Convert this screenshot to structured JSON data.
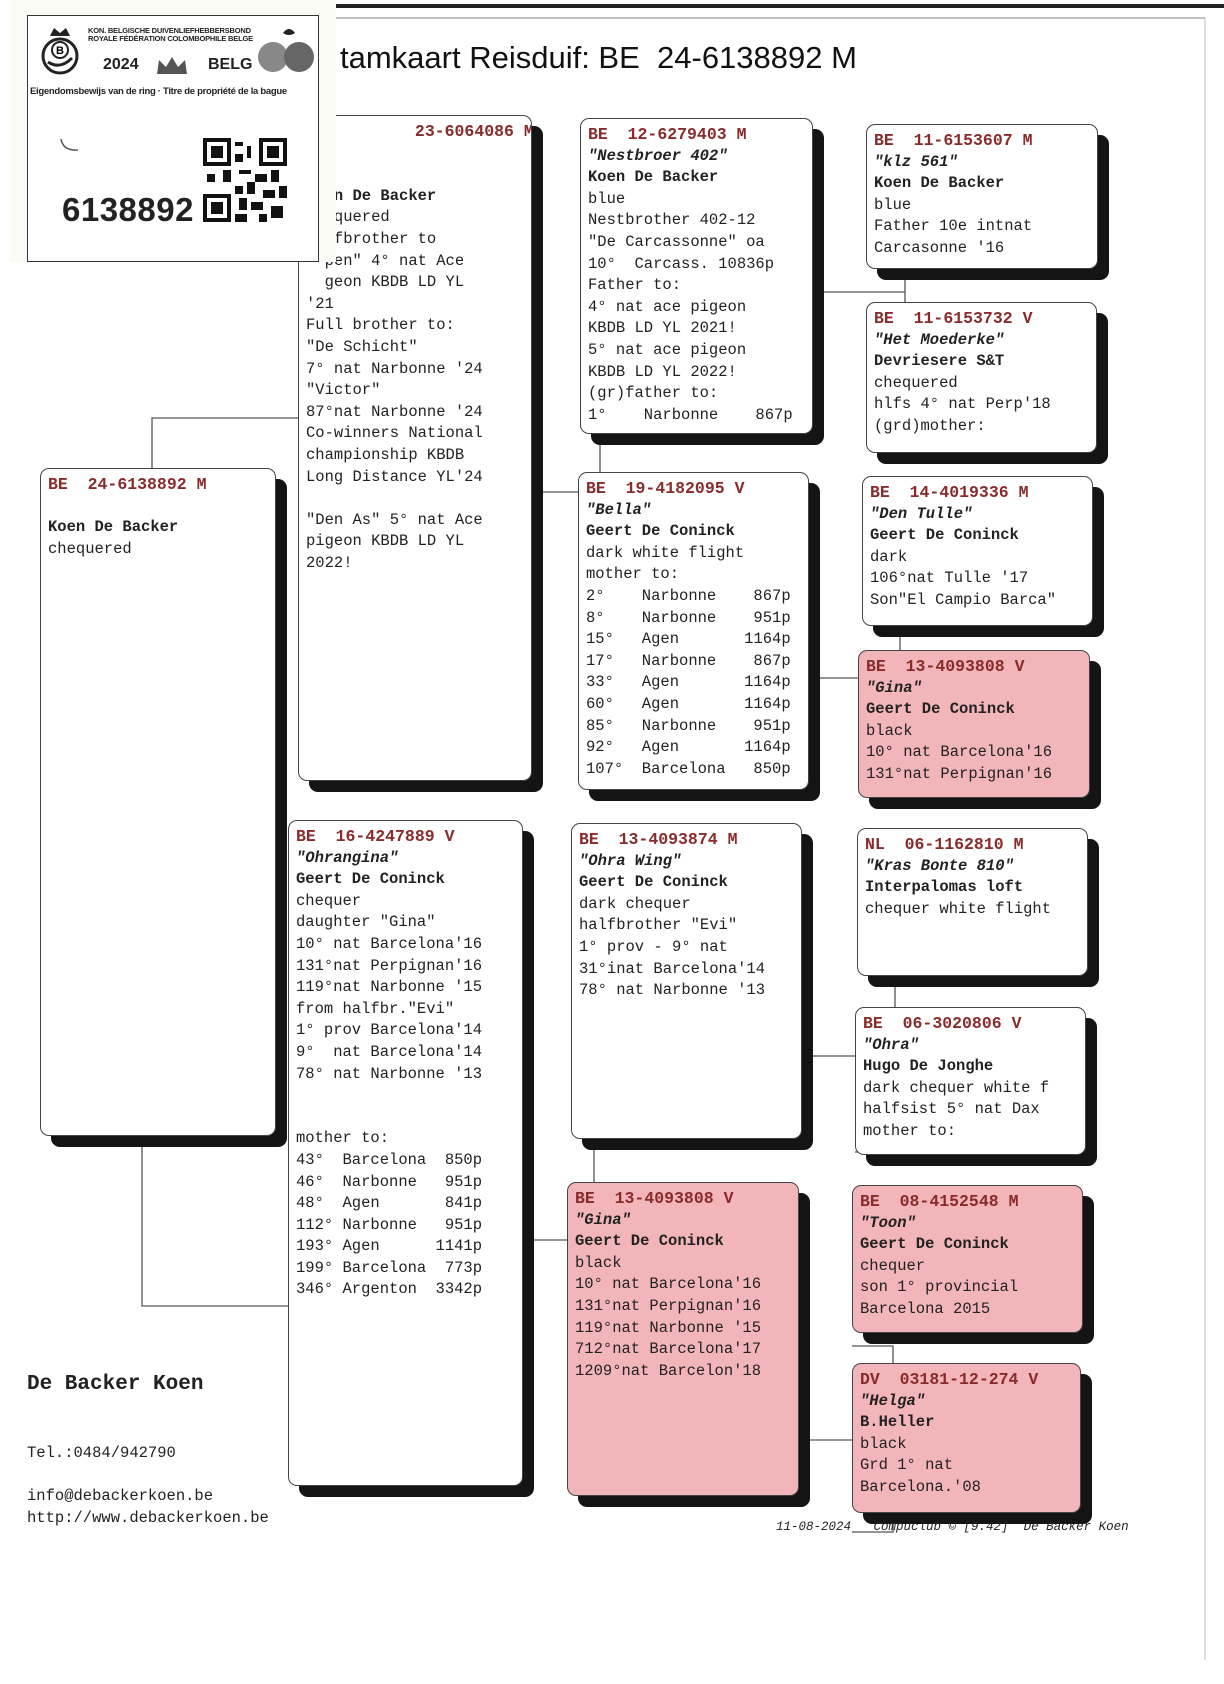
{
  "title": "tamkaart Reisduif: BE  24-6138892 M",
  "ring_card": {
    "federation_nl": "KON. BELGISCHE DUIVENLIEFHEBBERSBOND",
    "federation_fr": "ROYALE FÉDÉRATION COLOMBOPHILE BELGE",
    "year": "2024",
    "country": "BELG",
    "proof_text": "Eigendomsbewijs van de ring · Titre de propriété de la bague",
    "ring_number": "6138892",
    "icons": [
      "kbdb-logo",
      "crown-icon",
      "pigeon-globe-logo",
      "qr-code"
    ]
  },
  "boxes": {
    "subject": {
      "country": "BE",
      "ring": "24-6138892",
      "sex": "M",
      "name": "",
      "breeder": "Koen De Backer",
      "lines": [
        "chequered"
      ],
      "pink": false,
      "blank_before_breeder": true
    },
    "father": {
      "country": "",
      "ring": "23-6064086",
      "sex": "M",
      "name": "",
      "breeder": "",
      "lines": [
        "",
        "",
        "  en De Backer",
        "  equered",
        "  lfbrother to",
        "  pen\" 4° nat Ace",
        "  geon KBDB LD YL",
        "'21",
        "Full brother to:",
        "\"De Schicht\"",
        "7° nat Narbonne '24",
        "\"Victor\"",
        "87°nat Narbonne '24",
        "Co-winners National",
        "championship KBDB",
        "Long Distance YL'24",
        "",
        "\"Den As\" 5° nat Ace",
        "pigeon KBDB LD YL",
        "2022!"
      ],
      "pink": false
    },
    "ff": {
      "country": "BE",
      "ring": "12-6279403",
      "sex": "M",
      "name": "\"Nestbroer 402\"",
      "breeder": "Koen De Backer",
      "lines": [
        "blue",
        "Nestbrother 402-12",
        "\"De Carcassonne\" oa",
        "10°  Carcass. 10836p",
        "Father to:",
        "4° nat ace pigeon",
        "KBDB LD YL 2021!",
        "5° nat ace pigeon",
        "KBDB LD YL 2022!",
        "(gr)father to:",
        "1°    Narbonne    867p"
      ],
      "pink": false
    },
    "fm": {
      "country": "BE",
      "ring": "19-4182095",
      "sex": "V",
      "name": "\"Bella\"",
      "breeder": "Geert De Coninck",
      "lines": [
        "dark white flight",
        "mother to:",
        "2°    Narbonne    867p",
        "8°    Narbonne    951p",
        "15°   Agen       1164p",
        "17°   Narbonne    867p",
        "33°   Agen       1164p",
        "60°   Agen       1164p",
        "85°   Narbonne    951p",
        "92°   Agen       1164p",
        "107°  Barcelona   850p"
      ],
      "pink": false
    },
    "fff": {
      "country": "BE",
      "ring": "11-6153607",
      "sex": "M",
      "name": "\"klz 561\"",
      "breeder": "Koen De Backer",
      "lines": [
        "blue",
        "Father 10e intnat",
        "Carcasonne '16"
      ],
      "pink": false
    },
    "ffm": {
      "country": "BE",
      "ring": "11-6153732",
      "sex": "V",
      "name": "\"Het Moederke\"",
      "breeder": "Devriesere S&T",
      "lines": [
        "chequered",
        "hlfs 4° nat Perp'18",
        "(grd)mother:"
      ],
      "pink": false
    },
    "fmf": {
      "country": "BE",
      "ring": "14-4019336",
      "sex": "M",
      "name": "\"Den Tulle\"",
      "breeder": "Geert De Coninck",
      "lines": [
        "dark",
        "106°nat Tulle '17",
        "Son\"El Campio Barca\""
      ],
      "pink": false
    },
    "fmm": {
      "country": "BE",
      "ring": "13-4093808",
      "sex": "V",
      "name": "\"Gina\"",
      "breeder": "Geert De Coninck",
      "lines": [
        "black",
        "10° nat Barcelona'16",
        "131°nat Perpignan'16"
      ],
      "pink": true
    },
    "mother": {
      "country": "BE",
      "ring": "16-4247889",
      "sex": "V",
      "name": "\"Ohrangina\"",
      "breeder": "Geert De Coninck",
      "lines": [
        "chequer",
        "daughter \"Gina\"",
        "10° nat Barcelona'16",
        "131°nat Perpignan'16",
        "119°nat Narbonne '15",
        "from halfbr.\"Evi\"",
        "1° prov Barcelona'14",
        "9°  nat Barcelona'14",
        "78° nat Narbonne '13",
        "",
        "",
        "mother to:",
        "43°  Barcelona  850p",
        "46°  Narbonne   951p",
        "48°  Agen       841p",
        "112° Narbonne   951p",
        "193° Agen      1141p",
        "199° Barcelona  773p",
        "346° Argenton  3342p"
      ],
      "pink": false
    },
    "mf": {
      "country": "BE",
      "ring": "13-4093874",
      "sex": "M",
      "name": "\"Ohra Wing\"",
      "breeder": "Geert De Coninck",
      "lines": [
        "dark chequer",
        "halfbrother \"Evi\"",
        "1° prov - 9° nat",
        "31°inat Barcelona'14",
        "78° nat Narbonne '13"
      ],
      "pink": false
    },
    "mm": {
      "country": "BE",
      "ring": "13-4093808",
      "sex": "V",
      "name": "\"Gina\"",
      "breeder": "Geert De Coninck",
      "lines": [
        "black",
        "10° nat Barcelona'16",
        "131°nat Perpignan'16",
        "119°nat Narbonne '15",
        "712°nat Barcelona'17",
        "1209°nat Barcelon'18"
      ],
      "pink": true
    },
    "mff": {
      "country": "NL",
      "ring": "06-1162810",
      "sex": "M",
      "name": "\"Kras Bonte 810\"",
      "breeder": "Interpalomas loft",
      "lines": [
        "chequer white flight"
      ],
      "pink": false
    },
    "mfm": {
      "country": "BE",
      "ring": "06-3020806",
      "sex": "V",
      "name": "\"Ohra\"",
      "breeder": "Hugo De Jonghe",
      "lines": [
        "dark chequer white f",
        "halfsist 5° nat Dax",
        "mother to:"
      ],
      "pink": false
    },
    "mmf": {
      "country": "BE",
      "ring": "08-4152548",
      "sex": "M",
      "name": "\"Toon\"",
      "breeder": "Geert De Coninck",
      "lines": [
        "chequer",
        "son 1° provincial",
        "Barcelona 2015"
      ],
      "pink": true
    },
    "mmm": {
      "country": "DV",
      "ring": "03181-12-274",
      "sex": "V",
      "name": "\"Helga\"",
      "breeder": "B.Heller",
      "lines": [
        "black",
        "Grd 1° nat",
        "Barcelona.'08"
      ],
      "pink": true
    }
  },
  "colors": {
    "ring_text": "#8a2b2b",
    "pink_box": "#f2b5ba",
    "shadow": "#141414"
  },
  "footer": {
    "name": "De Backer Koen",
    "tel": "Tel.:0484/942790",
    "email": "info@debackerkoen.be",
    "url": "http://www.debackerkoen.be",
    "date": "11-08-2024",
    "software": "Compuclub © [9.42]",
    "author": "De Backer Koen"
  }
}
